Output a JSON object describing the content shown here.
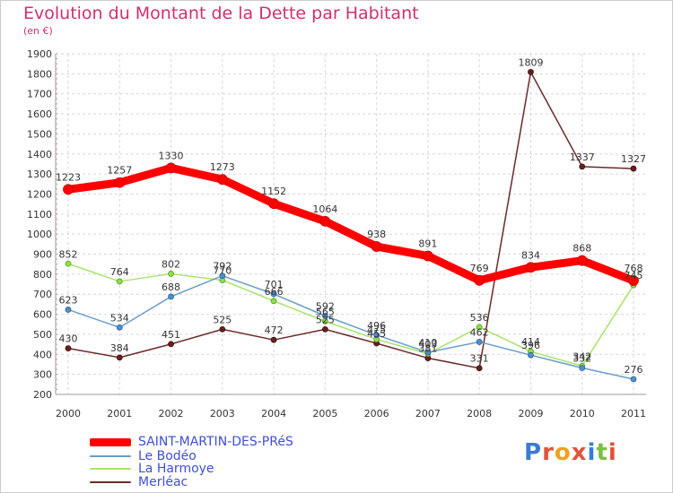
{
  "title": "Evolution du Montant de la Dette par Habitant",
  "unit": "(en €)",
  "logo": {
    "text": "Proxiti"
  },
  "chart_data": {
    "type": "line",
    "title": "Evolution du Montant de la Dette par Habitant",
    "ylabel": "(en €)",
    "x": [
      2000,
      2001,
      2002,
      2003,
      2004,
      2005,
      2006,
      2007,
      2008,
      2009,
      2010,
      2011
    ],
    "x_tick_labels": [
      "2000",
      "2001",
      "2002",
      "2003",
      "2004",
      "2005",
      "2006",
      "2007",
      "2008",
      "2009",
      "2010",
      "2011"
    ],
    "ylim": [
      200,
      1900
    ],
    "y_ticks": [
      200,
      300,
      400,
      500,
      600,
      700,
      800,
      900,
      1000,
      1100,
      1200,
      1300,
      1400,
      1500,
      1600,
      1700,
      1800,
      1900
    ],
    "grid": true,
    "legend_position": "bottom-left",
    "series": [
      {
        "name": "SAINT-MARTIN-DES-PRéS",
        "color": "#ff0000",
        "values": [
          1223,
          1257,
          1330,
          1273,
          1152,
          1064,
          938,
          891,
          769,
          834,
          868,
          768
        ],
        "labels": [
          "1223",
          "1257",
          "1330",
          "1273",
          "1152",
          "1064",
          "938",
          "891",
          "769",
          "834",
          "868",
          "768"
        ]
      },
      {
        "name": "Le Bodéo",
        "color": "#6a9cc9",
        "values": [
          623,
          534,
          688,
          792,
          701,
          592,
          496,
          410,
          462,
          396,
          332,
          276
        ],
        "labels": [
          "623",
          "534",
          "688",
          "792",
          "701",
          "592",
          "496",
          "410",
          "462",
          "396",
          "332",
          "276"
        ]
      },
      {
        "name": "La Harmoye",
        "color": "#a7e46a",
        "values": [
          852,
          764,
          802,
          770,
          666,
          565,
          475,
          403,
          536,
          414,
          342,
          745
        ],
        "labels": [
          "852",
          "764",
          "802",
          "770",
          "666",
          "565",
          "475",
          "403",
          "536",
          "414",
          "342",
          "745"
        ]
      },
      {
        "name": "Merléac",
        "color": "#6b2a2a",
        "values": [
          430,
          384,
          451,
          525,
          472,
          525,
          455,
          381,
          331,
          1809,
          1337,
          1327
        ],
        "labels": [
          "430",
          "384",
          "451",
          "525",
          "472",
          "525",
          "455",
          "381",
          "331",
          "1809",
          "1337",
          "1327"
        ]
      }
    ]
  }
}
